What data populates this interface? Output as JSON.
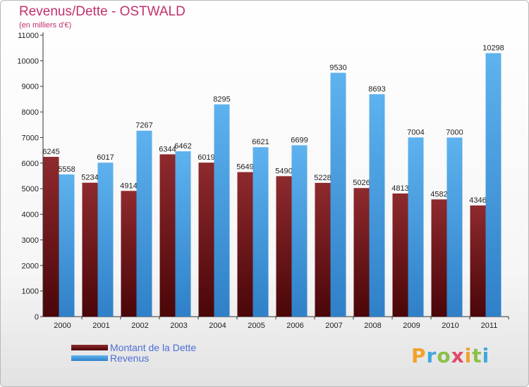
{
  "chart_data": {
    "type": "bar",
    "title": "Revenus/Dette - OSTWALD",
    "subtitle": "(en milliers d'€)",
    "categories": [
      "2000",
      "2001",
      "2002",
      "2003",
      "2004",
      "2005",
      "2006",
      "2007",
      "2008",
      "2009",
      "2010",
      "2011"
    ],
    "series": [
      {
        "name": "Montant de la Dette",
        "color": "#6b1418",
        "values": [
          6245,
          5234,
          4914,
          6344,
          6019,
          5649,
          5490,
          5228,
          5026,
          4813,
          4582,
          4346
        ]
      },
      {
        "name": "Revenus",
        "color": "#4aa1e6",
        "values": [
          5558,
          6017,
          7267,
          6462,
          8295,
          6621,
          6699,
          9530,
          8693,
          7004,
          7000,
          10298
        ]
      }
    ],
    "ylim": [
      0,
      11000
    ],
    "yticks": [
      0,
      1000,
      2000,
      3000,
      4000,
      5000,
      6000,
      7000,
      8000,
      9000,
      10000,
      11000
    ],
    "grid": false,
    "legend_position": "bottom-left",
    "brand": "Proxiti"
  }
}
